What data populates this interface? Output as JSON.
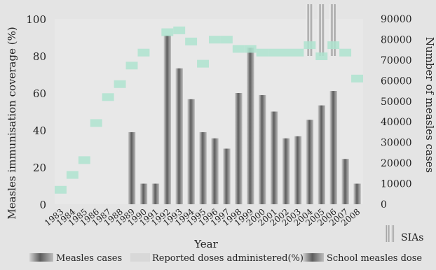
{
  "chart_data": {
    "type": "bar",
    "title": "",
    "xlabel": "Year",
    "ylabel_left": "Measles immunisation coverage (%)",
    "ylabel_right": "Number of measles cases",
    "ylim_left": [
      0,
      100
    ],
    "ylim_right": [
      0,
      90000
    ],
    "yticks_left": [
      0,
      20,
      40,
      60,
      80,
      100
    ],
    "yticks_right": [
      0,
      10000,
      20000,
      30000,
      40000,
      50000,
      60000,
      70000,
      80000,
      90000
    ],
    "categories": [
      "1983",
      "1984",
      "1985",
      "1986",
      "1987",
      "1988",
      "1989",
      "1990",
      "1991",
      "1992",
      "1993",
      "1994",
      "1995",
      "1996",
      "1997",
      "1998",
      "1999",
      "2000",
      "2001",
      "2002",
      "2003",
      "2004",
      "2005",
      "2006",
      "2007",
      "2008"
    ],
    "series": [
      {
        "name": "Measles cases",
        "axis": "right",
        "values": [
          0,
          0,
          0,
          0,
          0,
          0,
          35000,
          10000,
          10000,
          82000,
          66000,
          51000,
          35000,
          32000,
          27000,
          54000,
          76000,
          53000,
          45000,
          32000,
          33000,
          41000,
          48000,
          55000,
          22000,
          10000
        ]
      },
      {
        "name": "Reported doses administered(%)",
        "axis": "left",
        "values": [
          8,
          16,
          24,
          44,
          58,
          65,
          75,
          82,
          null,
          93,
          94,
          88,
          76,
          89,
          89,
          84,
          84,
          82,
          82,
          82,
          82,
          86,
          80,
          86,
          82,
          68
        ]
      },
      {
        "name": "School measles dose",
        "axis": "right",
        "values": [
          0,
          0,
          0,
          0,
          0,
          0,
          0,
          0,
          0,
          0,
          0,
          0,
          0,
          0,
          0,
          0,
          0,
          0,
          0,
          0,
          0,
          0,
          0,
          0,
          0,
          0
        ]
      }
    ],
    "sias": {
      "label": "SIAs",
      "years": [
        "2004",
        "2005",
        "2006"
      ]
    },
    "legend": [
      "Measles cases",
      "Reported doses administered(%)",
      "School measles dose"
    ],
    "legend_position": "bottom",
    "grid": false,
    "colors": {
      "background": "#e4e4e4",
      "bar_dark": "#5c5c5c",
      "bar_light": "#c8c8c8",
      "coverage": "#aee3cf",
      "sia": "#f6f6f6"
    }
  }
}
